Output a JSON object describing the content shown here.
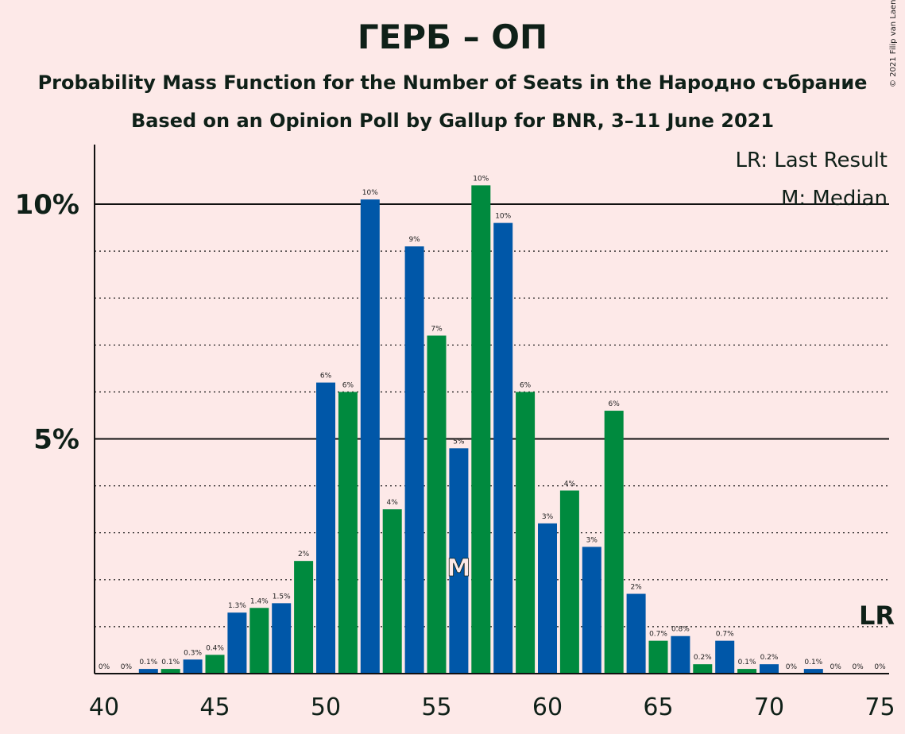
{
  "header": {
    "title": "ГЕРБ – ОП",
    "subtitle1": "Probability Mass Function for the Number of Seats in the Народно събрание",
    "subtitle2": "Based on an Opinion Poll by Gallup for BNR, 3–11 June 2021",
    "copyright": "© 2021 Filip van Laenen"
  },
  "colors": {
    "background": "#fde9e8",
    "blue": "#0057a8",
    "green": "#008a3e",
    "text": "#0f2018"
  },
  "chart_data": {
    "type": "bar",
    "x": [
      40,
      41,
      42,
      43,
      44,
      45,
      46,
      47,
      48,
      49,
      50,
      51,
      52,
      53,
      54,
      55,
      56,
      57,
      58,
      59,
      60,
      61,
      62,
      63,
      64,
      65,
      66,
      67,
      68,
      69,
      70,
      71,
      72,
      73,
      74,
      75
    ],
    "values": [
      0,
      0,
      0.1,
      0.1,
      0.3,
      0.4,
      1.3,
      1.4,
      1.5,
      2.4,
      6.2,
      6,
      10.1,
      3.5,
      9.1,
      7.2,
      4.8,
      10.4,
      9.6,
      6,
      3.2,
      3.9,
      2.7,
      5.6,
      1.7,
      0.7,
      0.8,
      0.2,
      0.7,
      0.1,
      0.2,
      0,
      0.1,
      0,
      0,
      0
    ],
    "labels": [
      "0%",
      "0%",
      "0.1%",
      "0.1%",
      "0.3%",
      "0.4%",
      "1.3%",
      "1.4%",
      "1.5%",
      "2%",
      "6%",
      "6%",
      "10%",
      "4%",
      "9%",
      "7%",
      "5%",
      "10%",
      "10%",
      "6%",
      "3%",
      "4%",
      "3%",
      "6%",
      "2%",
      "0.7%",
      "0.8%",
      "0.2%",
      "0.7%",
      "0.1%",
      "0.2%",
      "0%",
      "0.1%",
      "0%",
      "0%",
      "0%"
    ],
    "xticks": [
      40,
      45,
      50,
      55,
      60,
      65,
      70,
      75
    ],
    "yticks": [
      {
        "value": 5,
        "label": "5%"
      },
      {
        "value": 10,
        "label": "10%"
      }
    ],
    "ylim": [
      0,
      11
    ],
    "median": 56,
    "median_label": "M",
    "last_result": 75,
    "last_result_label": "LR",
    "legend": [
      "LR: Last Result",
      "M: Median"
    ],
    "legend_position": "top-right"
  }
}
